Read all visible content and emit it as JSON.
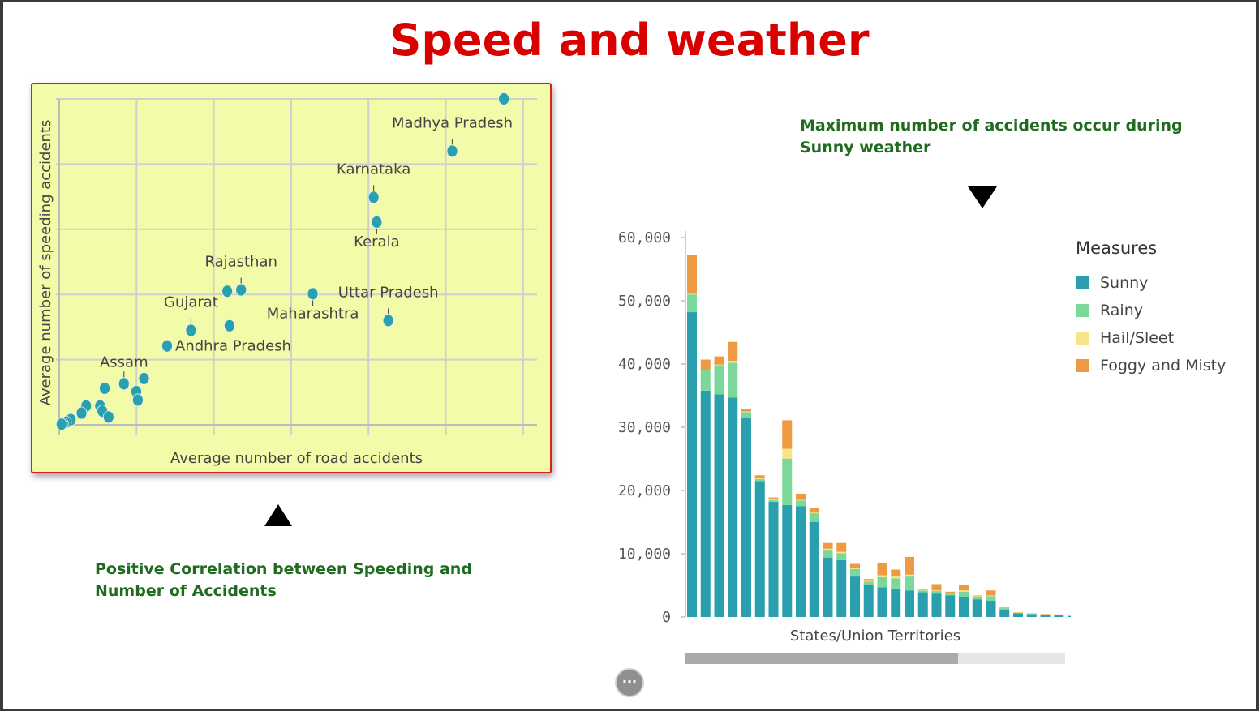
{
  "page": {
    "title": "Speed and weather"
  },
  "annotations": {
    "scatter_note": [
      "Positive Correlation between Speeding and",
      "Number of Accidents"
    ],
    "bar_note": [
      "Maximum number of accidents occur during",
      "Sunny weather"
    ]
  },
  "colors": {
    "title": "#d90000",
    "annotation": "#1f6b1f",
    "scatter_bg": "#f2fba8",
    "point": "#2a9fae"
  },
  "more_button_label": "···",
  "chart_data": [
    {
      "type": "scatter",
      "xlabel": "Average number of road accidents",
      "ylabel": "Average number of speeding accidents",
      "grid": true,
      "points": [
        {
          "label": "Madhya Pradesh",
          "x": 510,
          "y": 420
        },
        {
          "label": "",
          "x": 577,
          "y": 500
        },
        {
          "label": "Karnataka",
          "x": 408,
          "y": 349
        },
        {
          "label": "Kerala",
          "x": 412,
          "y": 311
        },
        {
          "label": "Uttar Pradesh",
          "x": 427,
          "y": 160
        },
        {
          "label": "Maharashtra",
          "x": 329,
          "y": 201
        },
        {
          "label": "Rajasthan",
          "x": 236,
          "y": 207
        },
        {
          "label": "",
          "x": 218,
          "y": 205
        },
        {
          "label": "",
          "x": 221,
          "y": 152
        },
        {
          "label": "Gujarat",
          "x": 171,
          "y": 145
        },
        {
          "label": "Andhra Pradesh",
          "x": 140,
          "y": 121
        },
        {
          "label": "Assam",
          "x": 84,
          "y": 63
        },
        {
          "label": "",
          "x": 110,
          "y": 71
        },
        {
          "label": "",
          "x": 100,
          "y": 51
        },
        {
          "label": "",
          "x": 102,
          "y": 38
        },
        {
          "label": "",
          "x": 59,
          "y": 56
        },
        {
          "label": "",
          "x": 35,
          "y": 29
        },
        {
          "label": "",
          "x": 53,
          "y": 29
        },
        {
          "label": "",
          "x": 56,
          "y": 21
        },
        {
          "label": "",
          "x": 29,
          "y": 18
        },
        {
          "label": "",
          "x": 64,
          "y": 12
        },
        {
          "label": "",
          "x": 15,
          "y": 8
        },
        {
          "label": "",
          "x": 9,
          "y": 4
        },
        {
          "label": "",
          "x": 5,
          "y": 2
        },
        {
          "label": "",
          "x": 3,
          "y": 1
        }
      ]
    },
    {
      "type": "bar",
      "stacked": true,
      "xlabel": "States/Union Territories",
      "ylabel": "",
      "ylim": [
        0,
        60000
      ],
      "yticks": [
        "60,000",
        "50,000",
        "40,000",
        "30,000",
        "20,000",
        "10,000",
        "0"
      ],
      "legend_title": "Measures",
      "legend_position": "right",
      "series": [
        {
          "name": "Sunny",
          "color": "#2a9fae",
          "values": [
            48200,
            35800,
            35200,
            34700,
            31500,
            21500,
            18200,
            17700,
            17500,
            15000,
            9400,
            9000,
            6400,
            5000,
            4700,
            4500,
            4200,
            3900,
            3700,
            3400,
            3200,
            2800,
            2600,
            1200,
            600,
            450,
            350,
            250,
            150
          ]
        },
        {
          "name": "Rainy",
          "color": "#7bd89a",
          "values": [
            2800,
            3200,
            4600,
            5500,
            900,
            300,
            300,
            7300,
            900,
            1400,
            1100,
            1100,
            1200,
            600,
            1600,
            1600,
            2200,
            300,
            400,
            300,
            800,
            400,
            700,
            200,
            50,
            50,
            50,
            50,
            50
          ]
        },
        {
          "name": "Hail/Sleet",
          "color": "#f6e48a",
          "values": [
            100,
            100,
            100,
            300,
            100,
            100,
            100,
            1600,
            100,
            100,
            300,
            200,
            200,
            100,
            300,
            300,
            300,
            100,
            100,
            100,
            200,
            100,
            100,
            50,
            50,
            50,
            50,
            50,
            50
          ]
        },
        {
          "name": "Foggy and Misty",
          "color": "#ee9a40",
          "values": [
            6100,
            1600,
            1300,
            3000,
            400,
            500,
            300,
            4500,
            1000,
            700,
            900,
            1400,
            600,
            300,
            2000,
            1100,
            2800,
            100,
            1000,
            200,
            900,
            100,
            800,
            100,
            50,
            50,
            50,
            50,
            50
          ]
        }
      ]
    }
  ]
}
